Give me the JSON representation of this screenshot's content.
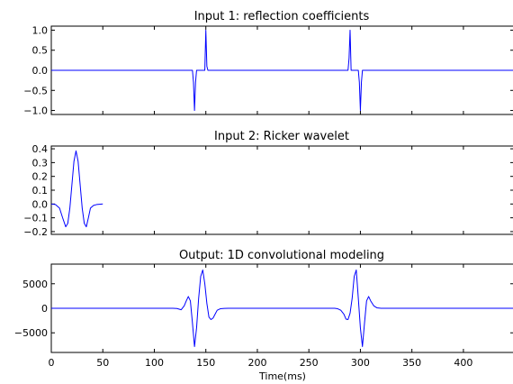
{
  "chart_data": [
    {
      "type": "line",
      "title": "Input 1: reflection coefficients",
      "xlim": [
        0,
        449
      ],
      "ylim": [
        -1.1,
        1.1
      ],
      "yticks": [
        1.0,
        0.5,
        0.0,
        -0.5,
        -1.0
      ],
      "ytick_labels": [
        "1.0",
        "0.5",
        "0.0",
        "−0.5",
        "−1.0"
      ],
      "xticks": [
        0,
        50,
        100,
        150,
        200,
        250,
        300,
        350,
        400
      ],
      "show_xtick_labels": false,
      "series": [
        {
          "color": "#0000ff",
          "x": [
            0,
            137,
            138,
            139,
            140,
            141,
            149,
            150,
            151,
            152,
            288,
            289,
            290,
            291,
            298,
            299,
            300,
            301,
            302,
            449
          ],
          "y": [
            0,
            0,
            -0.3,
            -1.0,
            -0.3,
            0,
            0,
            1.0,
            0.1,
            0,
            0,
            0.3,
            1.0,
            0,
            0,
            -0.3,
            -1.0,
            -0.3,
            0,
            0
          ]
        }
      ]
    },
    {
      "type": "line",
      "title": "Input 2: Ricker wavelet",
      "xlim": [
        0,
        449
      ],
      "ylim": [
        -0.22,
        0.42
      ],
      "yticks": [
        0.4,
        0.3,
        0.2,
        0.1,
        0.0,
        -0.1,
        -0.2
      ],
      "ytick_labels": [
        "0.4",
        "0.3",
        "0.2",
        "0.1",
        "0.0",
        "−0.1",
        "−0.2"
      ],
      "xticks": [
        0,
        50,
        100,
        150,
        200,
        250,
        300,
        350,
        400
      ],
      "show_xtick_labels": false,
      "series": [
        {
          "color": "#0000ff",
          "x": [
            0,
            4,
            8,
            11,
            14,
            16,
            18,
            20,
            22,
            24,
            26,
            28,
            30,
            32,
            34,
            36,
            38,
            41,
            44,
            48,
            50
          ],
          "y": [
            0,
            -0.004,
            -0.03,
            -0.1,
            -0.165,
            -0.14,
            -0.03,
            0.14,
            0.31,
            0.385,
            0.31,
            0.14,
            -0.03,
            -0.14,
            -0.165,
            -0.1,
            -0.03,
            -0.01,
            -0.004,
            -0.001,
            0
          ]
        }
      ]
    },
    {
      "type": "line",
      "title": "Output: 1D convolutional modeling",
      "xlim": [
        0,
        449
      ],
      "ylim": [
        -9000,
        9000
      ],
      "yticks": [
        5000,
        0,
        -5000
      ],
      "ytick_labels": [
        "5000",
        "0",
        "−5000"
      ],
      "xticks": [
        0,
        50,
        100,
        150,
        200,
        250,
        300,
        350,
        400
      ],
      "xtick_labels": [
        "0",
        "50",
        "100",
        "150",
        "200",
        "250",
        "300",
        "350",
        "400"
      ],
      "xlabel": "Time(ms)",
      "show_xtick_labels": true,
      "series": [
        {
          "color": "#0000ff",
          "x": [
            0,
            118,
            122,
            126,
            129,
            131,
            133,
            135,
            137,
            139,
            141,
            143,
            145,
            147,
            149,
            151,
            153,
            155,
            157,
            159,
            161,
            164,
            168,
            172,
            275,
            278,
            281,
            284,
            286,
            288,
            290,
            292,
            294,
            296,
            298,
            300,
            302,
            304,
            306,
            308,
            310,
            313,
            316,
            320,
            449
          ],
          "y": [
            0,
            0,
            -50,
            -300,
            500,
            1500,
            2400,
            1500,
            -3000,
            -7800,
            -4000,
            2000,
            6500,
            7800,
            5000,
            1000,
            -1800,
            -2300,
            -2000,
            -1200,
            -400,
            -100,
            -20,
            0,
            0,
            -100,
            -400,
            -1200,
            -2200,
            -2300,
            -1000,
            2000,
            6500,
            7800,
            2000,
            -4000,
            -7800,
            -3000,
            1500,
            2400,
            1500,
            500,
            100,
            0,
            0
          ]
        }
      ]
    }
  ]
}
